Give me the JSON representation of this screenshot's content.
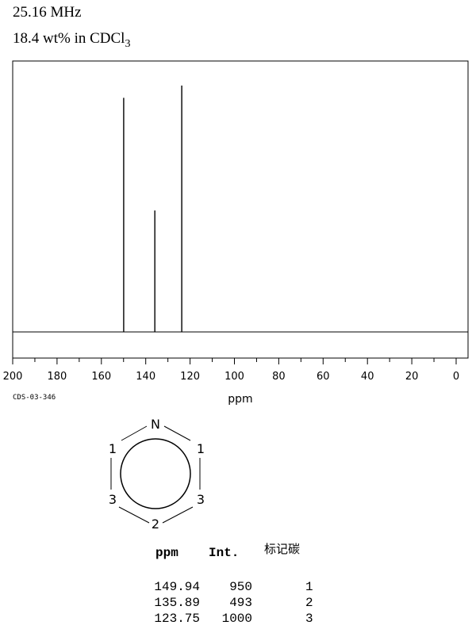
{
  "header": {
    "frequency": "25.16 MHz",
    "solvent_main": "18.4 wt% in CDCl",
    "solvent_sub": "3"
  },
  "chart_data": {
    "type": "line",
    "xlabel": "ppm",
    "xlim": [
      200,
      0
    ],
    "x_ticks": [
      "200",
      "180",
      "160",
      "140",
      "120",
      "100",
      "80",
      "60",
      "40",
      "20",
      "0"
    ],
    "peaks": [
      {
        "ppm": 149.94,
        "intensity": 950
      },
      {
        "ppm": 135.89,
        "intensity": 493
      },
      {
        "ppm": 123.75,
        "intensity": 1000
      }
    ]
  },
  "code": "CDS-03-346",
  "structure": {
    "heteroatom": "N",
    "labels": [
      "1",
      "1",
      "3",
      "3",
      "2"
    ]
  },
  "table": {
    "headers": [
      "ppm",
      "Int.",
      "标记碳"
    ],
    "rows": [
      [
        "149.94",
        "950",
        "1"
      ],
      [
        "135.89",
        "493",
        "2"
      ],
      [
        "123.75",
        "1000",
        "3"
      ]
    ]
  }
}
